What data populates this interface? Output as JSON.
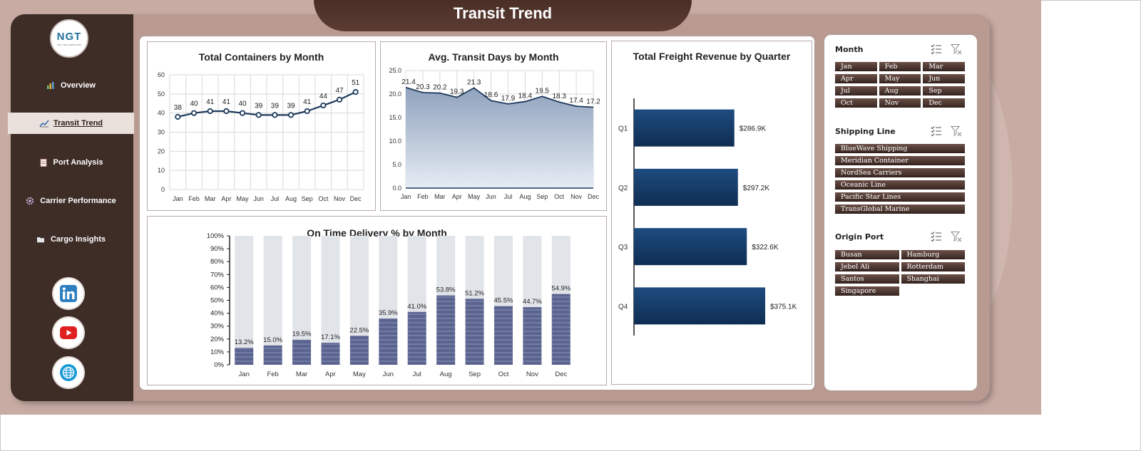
{
  "header": {
    "title": "Transit Trend"
  },
  "logo": {
    "text": "NGT",
    "subtext": "NEXT GEN TEMPLATES"
  },
  "nav": [
    {
      "label": "Overview",
      "icon": "bar-chart-icon",
      "active": false
    },
    {
      "label": "Transit Trend",
      "icon": "line-chart-icon",
      "active": true
    },
    {
      "label": "Port Analysis",
      "icon": "clipboard-icon",
      "active": false
    },
    {
      "label": "Carrier Performance",
      "icon": "gear-icon",
      "active": false
    },
    {
      "label": "Cargo Insights",
      "icon": "folder-icon",
      "active": false
    }
  ],
  "social": [
    {
      "icon": "linkedin-icon",
      "color": "#2d7fbf"
    },
    {
      "icon": "youtube-icon",
      "color": "#e02020"
    },
    {
      "icon": "globe-icon",
      "color": "#1b9ad6"
    }
  ],
  "slicers": [
    {
      "title": "Month",
      "items": [
        "Jan",
        "Feb",
        "Mar",
        "Apr",
        "May",
        "Jun",
        "Jul",
        "Aug",
        "Sep",
        "Oct",
        "Nov",
        "Dec"
      ],
      "columns": 3
    },
    {
      "title": "Shipping Line",
      "items": [
        "BlueWave Shipping",
        "Meridian Container",
        "NordSea Carriers",
        "Oceanic Line",
        "Pacific Star Lines",
        "TransGlobal Marine"
      ],
      "columns": 1
    },
    {
      "title": "Origin Port",
      "items": [
        "Busan",
        "Hamburg",
        "Jebel Ali",
        "Rotterdam",
        "Santos",
        "Shanghai",
        "Singapore"
      ],
      "columns": 2
    }
  ],
  "chart_data": [
    {
      "type": "line",
      "title": "Total Containers by Month",
      "categories": [
        "Jan",
        "Feb",
        "Mar",
        "Apr",
        "May",
        "Jun",
        "Jul",
        "Aug",
        "Sep",
        "Oct",
        "Nov",
        "Dec"
      ],
      "values": [
        38,
        40,
        41,
        41,
        40,
        39,
        39,
        39,
        41,
        44,
        47,
        51
      ],
      "ylim": [
        0,
        60
      ],
      "yticks": [
        "0",
        "10",
        "20",
        "30",
        "40",
        "50",
        "60"
      ],
      "grid": true,
      "color": "#1d3a5c"
    },
    {
      "type": "area",
      "title": "Avg. Transit Days by Month",
      "categories": [
        "Jan",
        "Feb",
        "Mar",
        "Apr",
        "May",
        "Jun",
        "Jul",
        "Aug",
        "Sep",
        "Oct",
        "Nov",
        "Dec"
      ],
      "values": [
        21.4,
        20.3,
        20.2,
        19.3,
        21.3,
        18.6,
        17.9,
        18.4,
        19.5,
        18.3,
        17.4,
        17.2
      ],
      "labels": [
        "21.4",
        "20.3",
        "20.2",
        "19.3",
        "21.3",
        "18.6",
        "17.9",
        "18.4",
        "19.5",
        "18.3",
        "17.4",
        "17.2"
      ],
      "ylim": [
        0,
        25
      ],
      "yticks": [
        "0.0",
        "5.0",
        "10.0",
        "15.0",
        "20.0",
        "25.0"
      ],
      "grid": true,
      "color": "#1d3a5c"
    },
    {
      "type": "bar",
      "title": "On Time Delivery % by Month",
      "categories": [
        "Jan",
        "Feb",
        "Mar",
        "Apr",
        "May",
        "Jun",
        "Jul",
        "Aug",
        "Sep",
        "Oct",
        "Nov",
        "Dec"
      ],
      "values": [
        13.2,
        15.0,
        19.5,
        17.1,
        22.5,
        35.9,
        41.0,
        53.8,
        51.2,
        45.5,
        44.7,
        54.9
      ],
      "labels": [
        "13.2%",
        "15.0%",
        "19.5%",
        "17.1%",
        "22.5%",
        "35.9%",
        "41.0%",
        "53.8%",
        "51.2%",
        "45.5%",
        "44.7%",
        "54.9%"
      ],
      "ylim": [
        0,
        100
      ],
      "yticks": [
        "0%",
        "10%",
        "20%",
        "30%",
        "40%",
        "50%",
        "60%",
        "70%",
        "80%",
        "90%",
        "100%"
      ],
      "color": "#5b648f",
      "background_color": "#e1e4e8"
    },
    {
      "type": "bar",
      "orientation": "horizontal",
      "title": "Total Freight Revenue by Quarter",
      "categories": [
        "Q1",
        "Q2",
        "Q3",
        "Q4"
      ],
      "values": [
        286.9,
        297.2,
        322.6,
        375.1
      ],
      "labels": [
        "$286.9K",
        "$297.2K",
        "$322.6K",
        "$375.1K"
      ],
      "color": "#163a66"
    }
  ]
}
